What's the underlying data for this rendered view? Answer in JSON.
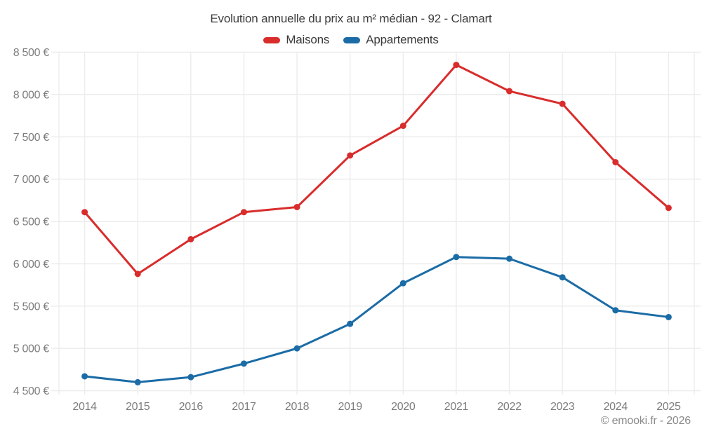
{
  "header": {
    "title": "Evolution annuelle du prix au m² médian - 92 - Clamart"
  },
  "legend": {
    "items": [
      {
        "label": "Maisons",
        "color": "#d92c2c"
      },
      {
        "label": "Appartements",
        "color": "#1b6ca6"
      }
    ]
  },
  "footer": {
    "credit": "© emooki.fr - 2026"
  },
  "colors": {
    "grid": "#ececec",
    "axis_text": "#7d7d7d",
    "title_text": "#3d3d3d",
    "maisons_red": "#d92c2c",
    "appartements_blue": "#1b6ca6"
  },
  "chart_data": {
    "type": "line",
    "title": "Evolution annuelle du prix au m² médian - 92 - Clamart",
    "categories": [
      "2014",
      "2015",
      "2016",
      "2017",
      "2018",
      "2019",
      "2020",
      "2021",
      "2022",
      "2023",
      "2024",
      "2025"
    ],
    "series": [
      {
        "name": "Maisons",
        "color": "#d92c2c",
        "values": [
          6610,
          5880,
          6290,
          6610,
          6670,
          7280,
          7630,
          8350,
          8040,
          7890,
          7200,
          6660
        ]
      },
      {
        "name": "Appartements",
        "color": "#1b6ca6",
        "values": [
          4670,
          4600,
          4660,
          4820,
          5000,
          5290,
          5770,
          6080,
          6060,
          5840,
          5450,
          5370
        ]
      }
    ],
    "ylim": [
      4500,
      8500
    ],
    "y_tick_step": 500,
    "y_tick_labels": [
      "4 500 €",
      "5 000 €",
      "5 500 €",
      "6 000 €",
      "6 500 €",
      "7 000 €",
      "7 500 €",
      "8 000 €",
      "8 500 €"
    ],
    "xlabel": "",
    "ylabel": "",
    "grid": true,
    "legend_position": "top",
    "marker": "circle"
  }
}
